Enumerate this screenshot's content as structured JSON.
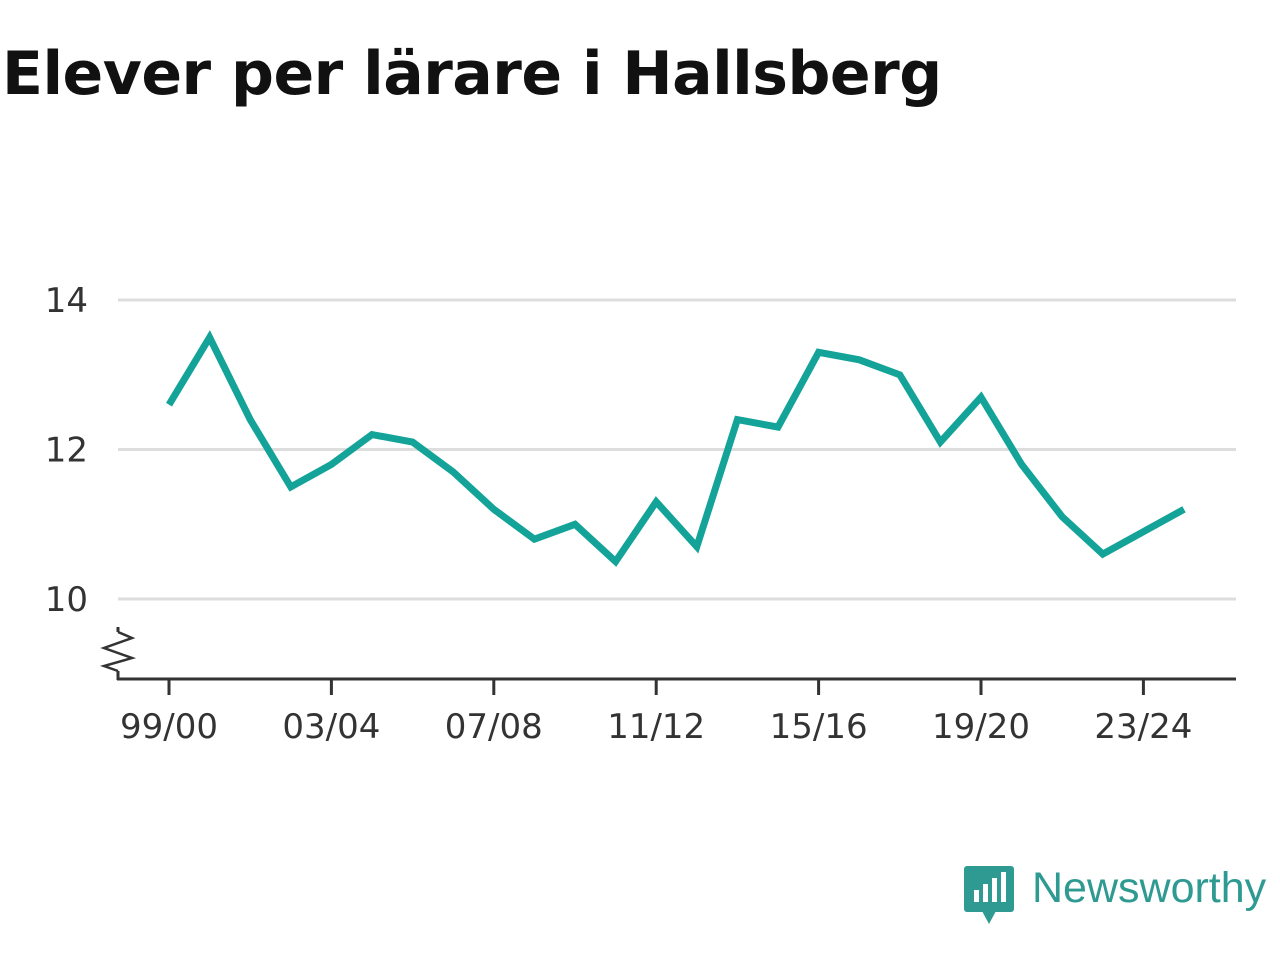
{
  "title": "Elever per lärare i Hallsberg",
  "brand": {
    "name": "Newsworthy",
    "color": "#2f9a92"
  },
  "chart_data": {
    "type": "line",
    "title": "Elever per lärare i Hallsberg",
    "xlabel": "",
    "ylabel": "",
    "x": [
      "99/00",
      "00/01",
      "01/02",
      "02/03",
      "03/04",
      "04/05",
      "05/06",
      "06/07",
      "07/08",
      "08/09",
      "09/10",
      "10/11",
      "11/12",
      "12/13",
      "13/14",
      "14/15",
      "15/16",
      "16/17",
      "17/18",
      "18/19",
      "19/20",
      "20/21",
      "21/22",
      "22/23",
      "23/24",
      "24/25"
    ],
    "series": [
      {
        "values": [
          12.6,
          13.5,
          12.4,
          11.5,
          11.8,
          12.2,
          12.1,
          11.7,
          11.2,
          10.8,
          11.0,
          10.5,
          11.3,
          10.7,
          12.4,
          12.3,
          13.3,
          13.2,
          13.0,
          12.1,
          12.7,
          11.8,
          11.1,
          10.6,
          10.9,
          11.2
        ],
        "color": "#13a398"
      }
    ],
    "xticks": [
      "99/00",
      "03/04",
      "07/08",
      "11/12",
      "15/16",
      "19/20",
      "23/24"
    ],
    "yticks": [
      10,
      12,
      14
    ],
    "ylim": [
      9,
      14
    ],
    "grid": true,
    "axis_break": true,
    "legend": false
  }
}
